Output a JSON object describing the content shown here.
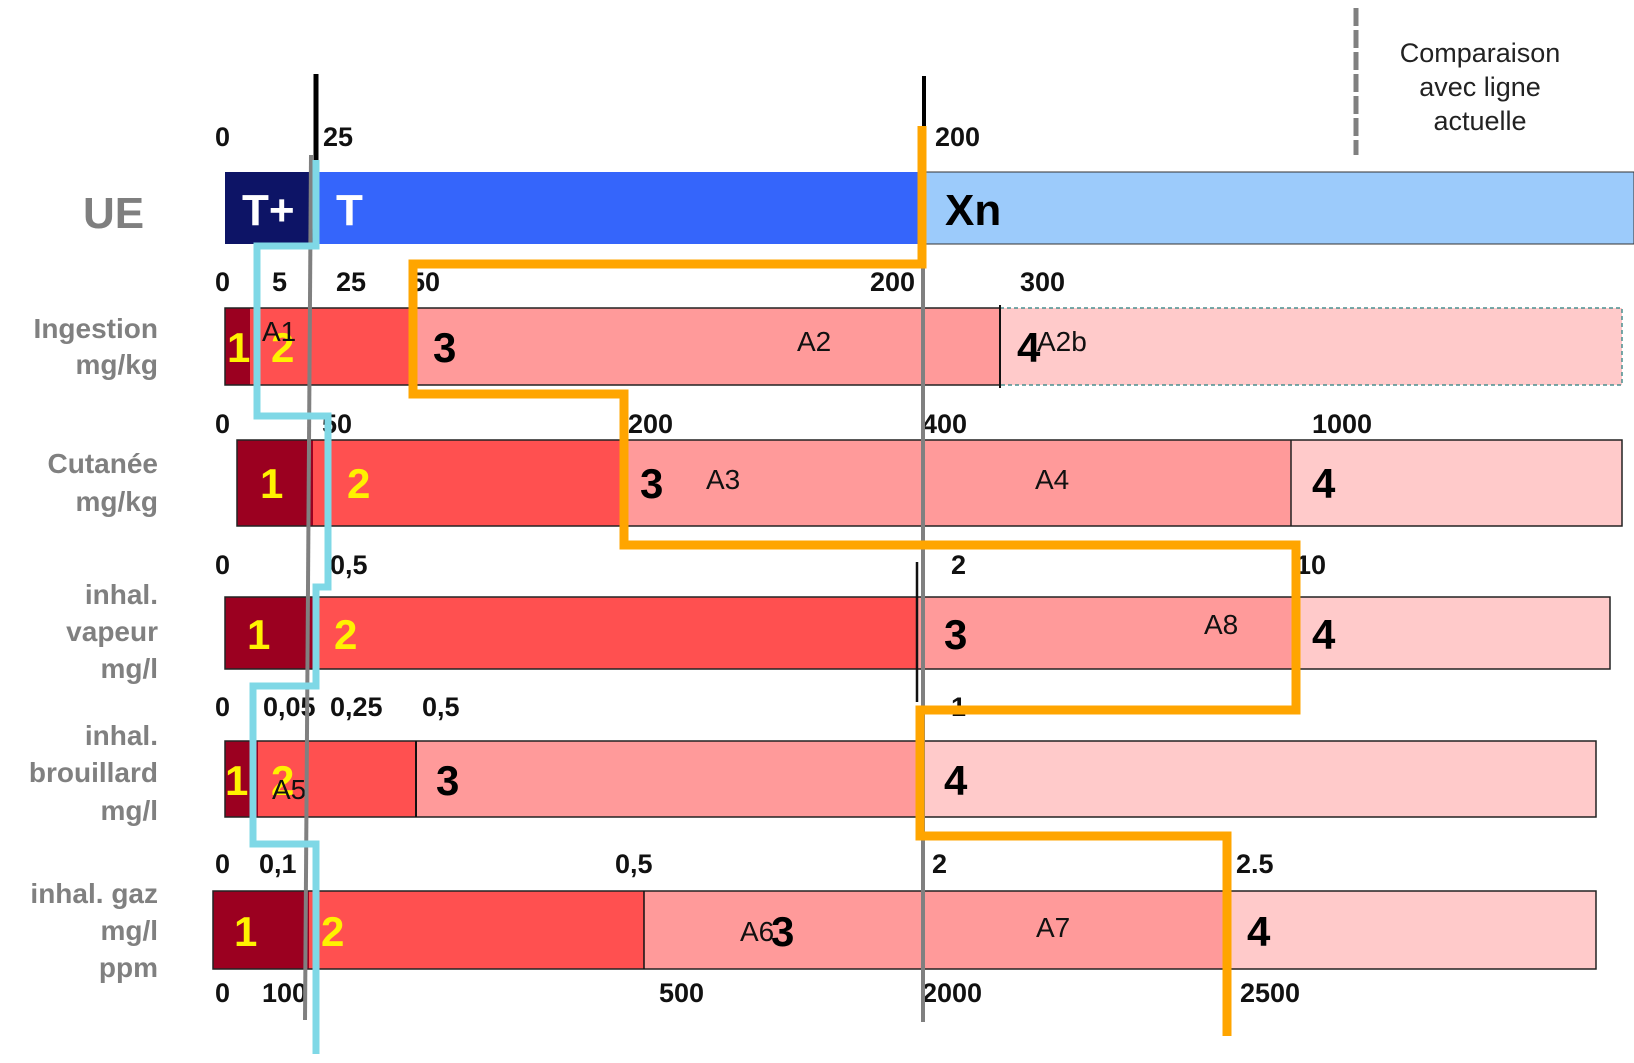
{
  "legend": {
    "line1": "Comparaison",
    "line2": "avec ligne",
    "line3": "actuelle"
  },
  "colors": {
    "ue_tplus": "#0d1466",
    "ue_t": "#3565fb",
    "ue_xn": "#9ccbfb",
    "cat1": "#9b0020",
    "cat2": "#ff5050",
    "cat3": "#ff9a9a",
    "cat4": "#ffcaca",
    "num_yellow": "#fff200",
    "orange_line": "#ffa500",
    "cyan_line": "#7fd8e6",
    "grey_line": "#808080"
  },
  "rows": {
    "ue": {
      "label": "UE",
      "ticks": [
        "0",
        "25",
        "200"
      ],
      "bands": [
        "T+",
        "T",
        "Xn"
      ]
    },
    "ingestion": {
      "label_line1": "Ingestion",
      "label_line2": "mg/kg",
      "ticks": [
        "0",
        "5",
        "25",
        "50",
        "200",
        "300"
      ],
      "categories": [
        "1",
        "2",
        "3",
        "4"
      ],
      "annotations": [
        "A1",
        "A2",
        "A2b"
      ]
    },
    "cutanee": {
      "label_line1": "Cutanée",
      "label_line2": "mg/kg",
      "ticks": [
        "0",
        "50",
        "200",
        "400",
        "1000"
      ],
      "categories": [
        "1",
        "2",
        "3",
        "4"
      ],
      "annotations": [
        "A3",
        "A4"
      ]
    },
    "vapeur": {
      "label_line1": "inhal.",
      "label_line2": "vapeur",
      "label_line3": "mg/l",
      "ticks": [
        "0",
        "0,5",
        "2",
        "10"
      ],
      "categories": [
        "1",
        "2",
        "3",
        "4"
      ],
      "annotations": [
        "A8"
      ]
    },
    "brouillard": {
      "label_line1": "inhal.",
      "label_line2": "brouillard",
      "label_line3": "mg/l",
      "ticks": [
        "0",
        "0,05",
        "0,25",
        "0,5",
        "1"
      ],
      "categories": [
        "1",
        "2",
        "3",
        "4"
      ],
      "annotations": [
        "A5"
      ]
    },
    "gaz": {
      "label_line1": "inhal. gaz",
      "label_line2": "mg/l",
      "label_line3": "ppm",
      "ticks": [
        "0",
        "0,1",
        "0,5",
        "2",
        "2.5"
      ],
      "ticks_ppm": [
        "0",
        "100",
        "500",
        "2000",
        "2500"
      ],
      "categories": [
        "1",
        "2",
        "3",
        "4"
      ],
      "annotations": [
        "A6",
        "A7"
      ]
    }
  }
}
